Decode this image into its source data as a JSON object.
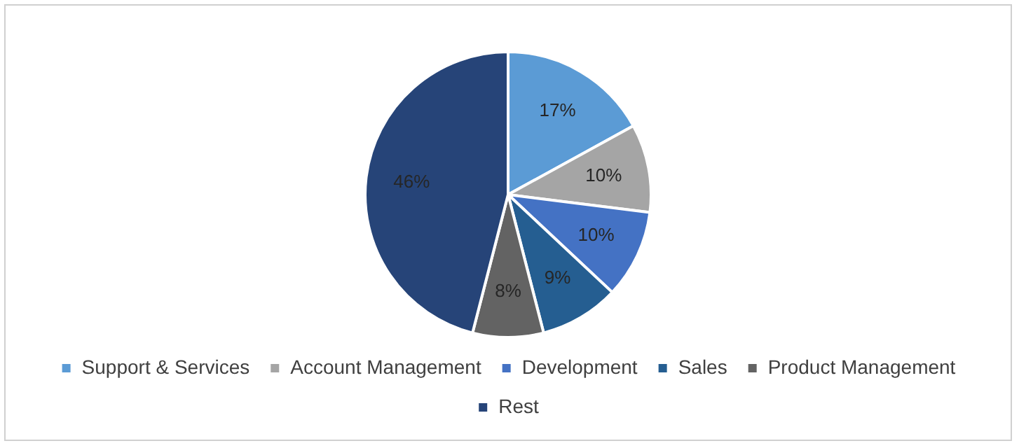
{
  "chart_data": {
    "type": "pie",
    "categories": [
      "Support & Services",
      "Account Management",
      "Development",
      "Sales",
      "Product Management",
      "Rest"
    ],
    "values": [
      17,
      10,
      10,
      9,
      8,
      46
    ],
    "colors": [
      "#5b9bd5",
      "#a5a5a5",
      "#4472c4",
      "#255e91",
      "#636363",
      "#264478"
    ],
    "value_labels": [
      "17%",
      "10%",
      "10%",
      "9%",
      "8%",
      "46%"
    ],
    "legend": "bottom"
  }
}
